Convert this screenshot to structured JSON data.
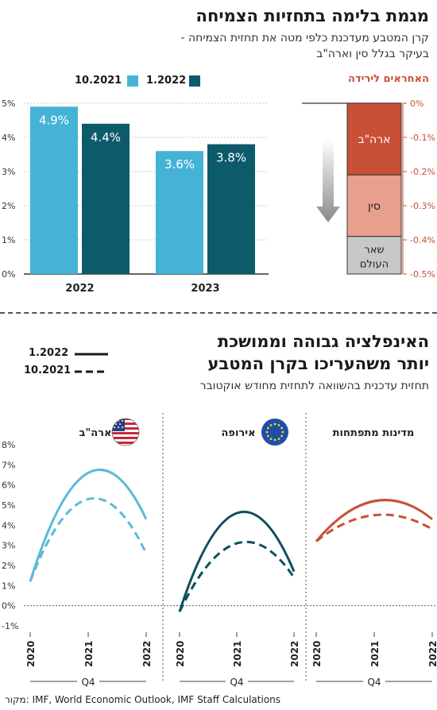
{
  "section1": {
    "title": "מגמת בלימה בתחזיות הצמיחה",
    "subtitle_line1": "קרן המטבע מעדכנת כלפי מטה את תחזית הצמיחה -",
    "subtitle_line2": "בעיקר בגלל סין וארה\"ב",
    "responsible_label": "האחראים לירידה",
    "legend": [
      {
        "label": "1.2022",
        "color": "#0d5a6b"
      },
      {
        "label": "10.2021",
        "color": "#45b3d6"
      }
    ]
  },
  "section2": {
    "title_line1": "האינפלציה גבוהה וממושכת",
    "title_line2": "יותר משהעריכו בקרן המטבע",
    "subtitle": "תחזית עדכנית בהשוואה לתחזית מחודש אוקטובר",
    "legend": [
      {
        "label": "1.2022",
        "style": "solid"
      },
      {
        "label": "10.2021",
        "style": "dashed"
      }
    ]
  },
  "source": "מקור:  IMF, World Economic Outlook, IMF Staff Calculations",
  "colors": {
    "accent_red": "#c85037",
    "dark_teal": "#0d5a6b",
    "light_blue": "#45b3d6",
    "usa_line": "#5bbad9",
    "europe_line": "#0d4f5e",
    "em_line": "#c85037"
  },
  "chart_data": [
    {
      "type": "bar",
      "title": "",
      "categories": [
        "2022",
        "2023"
      ],
      "series": [
        {
          "name": "10.2021",
          "values": [
            4.9,
            3.6
          ]
        },
        {
          "name": "1.2022",
          "values": [
            4.4,
            3.8
          ]
        }
      ],
      "value_labels": [
        [
          "4.9%",
          "3.6%"
        ],
        [
          "4.4%",
          "3.8%"
        ]
      ],
      "ylim": [
        0,
        5
      ],
      "y_ticks": [
        "0%",
        "1%",
        "2%",
        "3%",
        "4%",
        "5%"
      ],
      "grid": true
    },
    {
      "type": "bar",
      "title": "האחראים לירידה",
      "stacked": true,
      "segments": [
        {
          "label": "ארה\"ב",
          "value": -0.21,
          "color": "#c85037"
        },
        {
          "label": "סין",
          "value": -0.18,
          "color": "#e8a08e"
        },
        {
          "label": "שאר העולם",
          "value": -0.11,
          "color": "#c8c8c8"
        }
      ],
      "ylim": [
        -0.5,
        0
      ],
      "y_ticks": [
        "0%",
        "-0.1%",
        "-0.2%",
        "-0.3%",
        "-0.4%",
        "-0.5%"
      ]
    },
    {
      "type": "line",
      "panels": [
        {
          "name": "ארה\"ב",
          "x": [
            "2020",
            "2021",
            "2022"
          ],
          "solid": [
            1.2,
            6.6,
            4.3
          ],
          "dashed": [
            1.2,
            5.3,
            2.6
          ]
        },
        {
          "name": "אירופה",
          "x": [
            "2020",
            "2021",
            "2022"
          ],
          "solid": [
            -0.3,
            4.6,
            1.7
          ],
          "dashed": [
            -0.3,
            3.1,
            1.4
          ]
        },
        {
          "name": "מדינות מתפתחות",
          "x": [
            "2020",
            "2021",
            "2022"
          ],
          "solid": [
            3.2,
            5.2,
            4.3
          ],
          "dashed": [
            3.2,
            4.5,
            3.8
          ]
        }
      ],
      "x_group_label": "Q4",
      "ylim": [
        -1,
        8
      ],
      "y_ticks": [
        "-1%",
        "0%",
        "1%",
        "2%",
        "3%",
        "4%",
        "5%",
        "6%",
        "7%",
        "8%"
      ]
    }
  ]
}
